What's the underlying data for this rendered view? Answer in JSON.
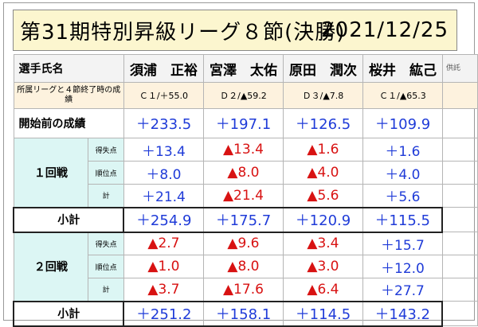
{
  "title": {
    "main": "第31期特別昇級リーグ８節(決勝)",
    "date": "2021/12/25"
  },
  "header": {
    "label": "選手氏名",
    "players": [
      "須浦　正裕",
      "宮澤　太佑",
      "原田　潤次",
      "桜井　紘己"
    ],
    "vote_label": "供託"
  },
  "prev": {
    "label": "所属リーグと４節終了時の成績",
    "values": [
      "Ｃ１/＋55.0",
      "Ｄ２/▲59.2",
      "Ｄ３/▲7.8",
      "Ｃ１/▲65.3"
    ]
  },
  "start": {
    "label": "開始前の成績",
    "values": [
      "＋233.5",
      "＋197.1",
      "＋126.5",
      "＋109.9"
    ]
  },
  "rounds": [
    {
      "label": "１回戦",
      "rows": [
        {
          "label": "得失点",
          "values": [
            "＋13.4",
            "▲13.4",
            "▲1.6",
            "＋1.6"
          ]
        },
        {
          "label": "順位点",
          "values": [
            "＋8.0",
            "▲8.0",
            "▲4.0",
            "＋4.0"
          ]
        },
        {
          "label": "計",
          "values": [
            "＋21.4",
            "▲21.4",
            "▲5.6",
            "＋5.6"
          ]
        }
      ],
      "subtotal": {
        "label": "小計",
        "values": [
          "＋254.9",
          "＋175.7",
          "＋120.9",
          "＋115.5"
        ]
      }
    },
    {
      "label": "２回戦",
      "rows": [
        {
          "label": "得失点",
          "values": [
            "▲2.7",
            "▲9.6",
            "▲3.4",
            "＋15.7"
          ]
        },
        {
          "label": "順位点",
          "values": [
            "▲1.0",
            "▲8.0",
            "▲3.0",
            "＋12.0"
          ]
        },
        {
          "label": "計",
          "values": [
            "▲3.7",
            "▲17.6",
            "▲6.4",
            "＋27.7"
          ]
        }
      ],
      "subtotal": {
        "label": "小計",
        "values": [
          "＋251.2",
          "＋158.1",
          "＋114.5",
          "＋143.2"
        ]
      }
    }
  ],
  "colors": {
    "positive": "#1f3bd8",
    "negative": "#d81212",
    "title_bg": "#fcf6cf",
    "prev_bg": "#fdf2de",
    "round_bg": "#dcf6f4"
  }
}
